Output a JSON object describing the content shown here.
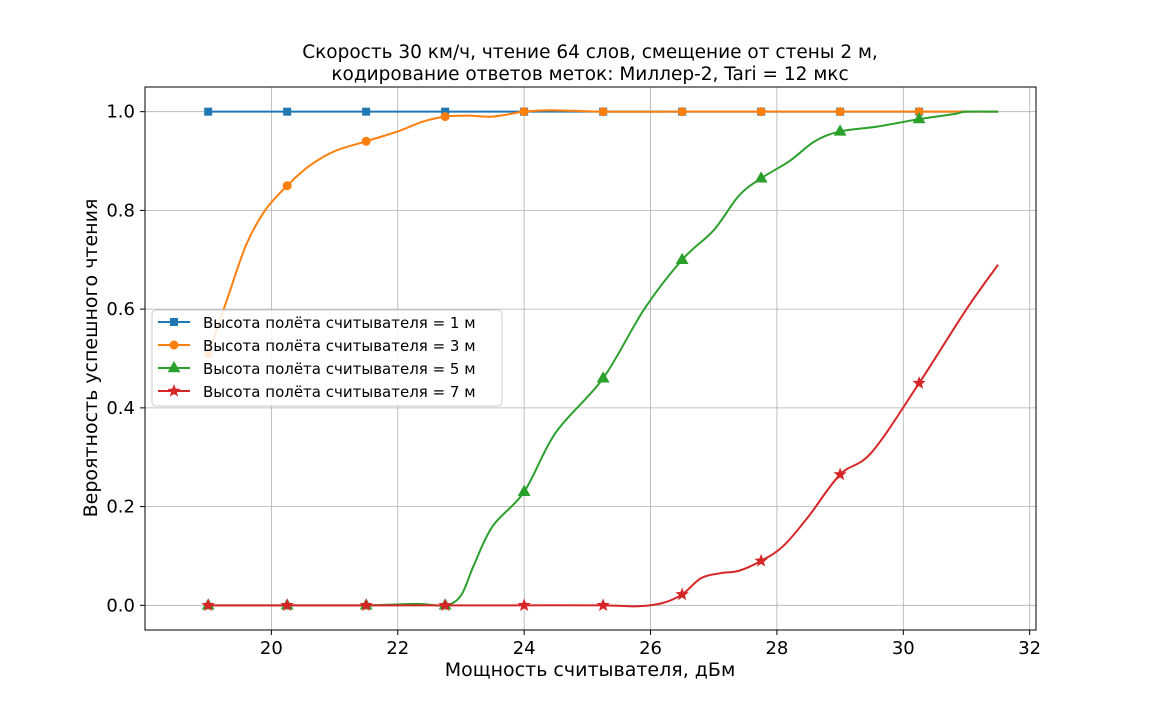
{
  "chart_data": {
    "type": "line",
    "title_lines": [
      "Скорость 30 км/ч, чтение 64 слов, смещение от стены 2 м,",
      "кодирование ответов меток: Миллер-2, Tari = 12 мкс"
    ],
    "xlabel": "Мощность считывателя, дБм",
    "ylabel": "Вероятность успешного чтения",
    "xlim": [
      18.0,
      32.1
    ],
    "ylim": [
      -0.05,
      1.05
    ],
    "xticks": [
      20,
      22,
      24,
      26,
      28,
      30,
      32
    ],
    "yticks": [
      0.0,
      0.2,
      0.4,
      0.6,
      0.8,
      1.0
    ],
    "xtick_labels": [
      "20",
      "22",
      "24",
      "26",
      "28",
      "30",
      "32"
    ],
    "ytick_labels": [
      "0.0",
      "0.2",
      "0.4",
      "0.6",
      "0.8",
      "1.0"
    ],
    "grid": true,
    "legend_position": "center-left",
    "series": [
      {
        "name": "Высота полёта считывателя = 1 м",
        "color": "#1f77b4",
        "marker": "square",
        "x": [
          19.0,
          20.25,
          21.5,
          22.75,
          24.0,
          25.25,
          26.5,
          27.75,
          29.0,
          30.25
        ],
        "y": [
          1.0,
          1.0,
          1.0,
          1.0,
          1.0,
          1.0,
          1.0,
          1.0,
          1.0,
          1.0
        ],
        "curve_x": [
          19.0,
          20.25,
          21.5,
          22.75,
          24.0,
          25.25,
          26.5,
          27.75,
          29.0,
          30.25,
          31.5
        ],
        "curve_y": [
          1.0,
          1.0,
          1.0,
          1.0,
          1.0,
          1.0,
          1.0,
          1.0,
          1.0,
          1.0,
          1.0
        ]
      },
      {
        "name": "Высота полёта считывателя = 3 м",
        "color": "#ff7f0e",
        "marker": "circle",
        "x": [
          19.0,
          20.25,
          21.5,
          22.75,
          24.0,
          25.25,
          26.5,
          27.75,
          29.0,
          30.25
        ],
        "y": [
          0.51,
          0.85,
          0.94,
          0.99,
          1.0,
          1.0,
          1.0,
          1.0,
          1.0,
          1.0
        ],
        "curve_x": [
          19.0,
          19.3,
          19.6,
          19.9,
          20.25,
          20.6,
          21.0,
          21.5,
          22.0,
          22.4,
          22.75,
          23.1,
          23.5,
          24.0,
          24.4,
          25.25,
          26.5,
          27.75,
          29.0,
          30.25,
          31.0,
          31.5
        ],
        "curve_y": [
          0.51,
          0.62,
          0.73,
          0.8,
          0.85,
          0.89,
          0.92,
          0.94,
          0.96,
          0.98,
          0.99,
          0.992,
          0.99,
          1.0,
          1.003,
          1.0,
          1.0,
          1.0,
          1.0,
          1.0,
          1.0,
          1.0
        ]
      },
      {
        "name": "Высота полёта считывателя = 5 м",
        "color": "#2ca02c",
        "marker": "triangle",
        "x": [
          19.0,
          20.25,
          21.5,
          22.75,
          24.0,
          25.25,
          26.5,
          27.75,
          29.0,
          30.25
        ],
        "y": [
          0.0,
          0.0,
          0.0,
          0.0,
          0.23,
          0.46,
          0.7,
          0.865,
          0.96,
          0.985
        ],
        "curve_x": [
          19.0,
          20.25,
          21.5,
          22.3,
          22.75,
          23.0,
          23.2,
          23.5,
          24.0,
          24.5,
          25.25,
          25.9,
          26.5,
          27.0,
          27.4,
          27.75,
          28.2,
          28.6,
          29.0,
          29.6,
          30.25,
          30.8,
          31.0,
          31.5
        ],
        "curve_y": [
          0.0,
          0.0,
          0.0,
          0.003,
          0.0,
          0.02,
          0.08,
          0.16,
          0.23,
          0.35,
          0.46,
          0.6,
          0.7,
          0.76,
          0.83,
          0.865,
          0.9,
          0.94,
          0.96,
          0.97,
          0.985,
          0.995,
          1.0,
          1.0
        ]
      },
      {
        "name": "Высота полёта считывателя = 7 м",
        "color": "#d62728",
        "marker": "star",
        "x": [
          19.0,
          20.25,
          21.5,
          22.75,
          24.0,
          25.25,
          26.5,
          27.75,
          29.0,
          30.25
        ],
        "y": [
          0.0,
          0.0,
          0.0,
          0.0,
          0.0,
          0.0,
          0.022,
          0.09,
          0.265,
          0.45
        ],
        "curve_x": [
          19.0,
          20.25,
          21.5,
          22.75,
          24.0,
          25.25,
          25.8,
          26.2,
          26.5,
          26.8,
          27.1,
          27.4,
          27.75,
          28.1,
          28.5,
          29.0,
          29.5,
          30.25,
          31.0,
          31.5
        ],
        "curve_y": [
          0.0,
          0.0,
          0.0,
          0.0,
          0.0,
          0.0,
          -0.002,
          0.005,
          0.022,
          0.055,
          0.065,
          0.07,
          0.09,
          0.12,
          0.18,
          0.265,
          0.31,
          0.45,
          0.6,
          0.69
        ]
      }
    ]
  }
}
